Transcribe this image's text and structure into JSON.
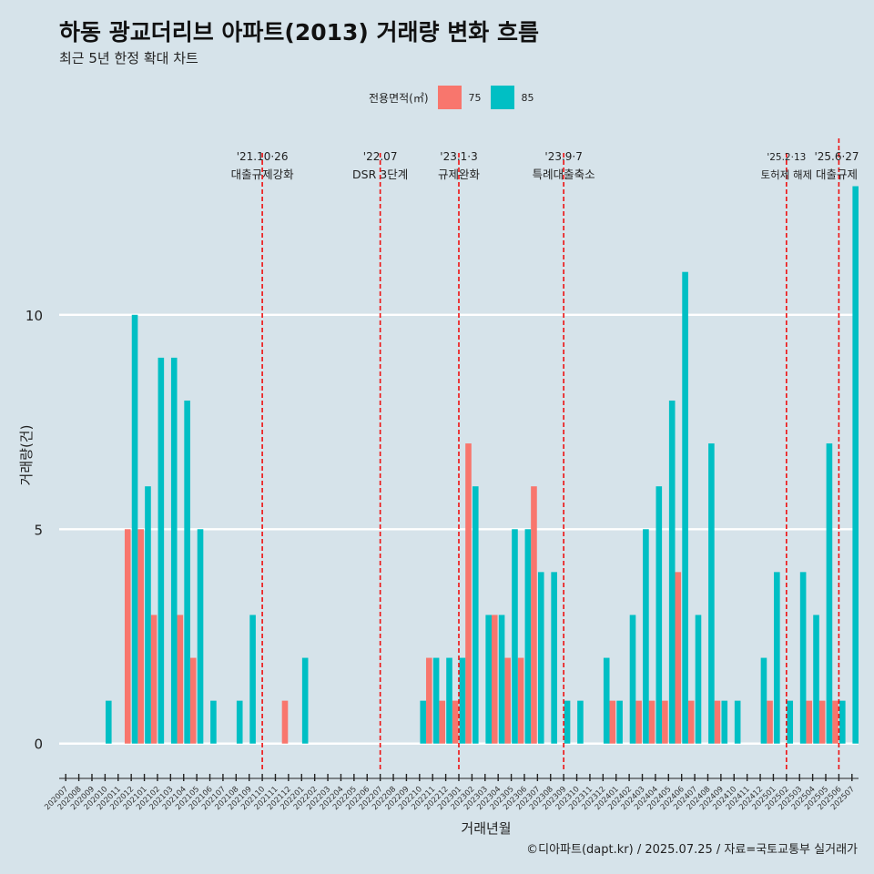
{
  "header": {
    "title": "하동 광교더리브 아파트(2013) 거래량 변화 흐름",
    "subtitle": "최근 5년 한정 확대 차트"
  },
  "legend": {
    "title": "전용면적(㎡)",
    "items": [
      {
        "label": "75",
        "color": "#f8766d"
      },
      {
        "label": "85",
        "color": "#00bfc4"
      }
    ]
  },
  "caption": "©디아파트(dapt.kr) / 2025.07.25 / 자료=국토교통부 실거래가",
  "chart_data": {
    "type": "bar",
    "xlabel": "거래년월",
    "ylabel": "거래량(건)",
    "ylim": [
      -0.6,
      14.2
    ],
    "yticks": [
      0,
      5,
      10
    ],
    "categories": [
      "202007",
      "202008",
      "202009",
      "202010",
      "202011",
      "202012",
      "202101",
      "202102",
      "202103",
      "202104",
      "202105",
      "202106",
      "202107",
      "202108",
      "202109",
      "202110",
      "202111",
      "202112",
      "202201",
      "202202",
      "202203",
      "202204",
      "202205",
      "202206",
      "202207",
      "202208",
      "202209",
      "202210",
      "202211",
      "202212",
      "202301",
      "202302",
      "202303",
      "202304",
      "202305",
      "202306",
      "202307",
      "202308",
      "202309",
      "202310",
      "202311",
      "202312",
      "202401",
      "202402",
      "202403",
      "202404",
      "202405",
      "202406",
      "202407",
      "202408",
      "202409",
      "202410",
      "202411",
      "202412",
      "202501",
      "202502",
      "202503",
      "202504",
      "202505",
      "202506",
      "202507"
    ],
    "series": [
      {
        "name": "75",
        "color": "#f8766d",
        "values": [
          0,
          0,
          0,
          0,
          0,
          5,
          5,
          3,
          0,
          3,
          2,
          0,
          0,
          0,
          0,
          0,
          0,
          1,
          0,
          0,
          0,
          0,
          0,
          0,
          0,
          0,
          0,
          0,
          2,
          1,
          1,
          7,
          0,
          3,
          2,
          2,
          6,
          0,
          0,
          0,
          0,
          0,
          1,
          0,
          1,
          1,
          1,
          4,
          1,
          0,
          1,
          0,
          0,
          0,
          1,
          0,
          0,
          1,
          1,
          1,
          0
        ]
      },
      {
        "name": "85",
        "color": "#00bfc4",
        "values": [
          0,
          0,
          0,
          1,
          0,
          10,
          6,
          9,
          9,
          8,
          5,
          1,
          0,
          1,
          3,
          0,
          0,
          0,
          2,
          0,
          0,
          0,
          0,
          0,
          0,
          0,
          0,
          1,
          2,
          2,
          2,
          6,
          3,
          3,
          5,
          5,
          4,
          4,
          1,
          1,
          0,
          2,
          1,
          3,
          5,
          6,
          8,
          11,
          3,
          7,
          1,
          1,
          0,
          2,
          4,
          1,
          4,
          3,
          7,
          1,
          13
        ]
      }
    ],
    "events": [
      {
        "date": "'21.10·26",
        "label": "대출규제강화",
        "month": "202110"
      },
      {
        "date": "'22.07",
        "label": "DSR 3단계",
        "month": "202207"
      },
      {
        "date": "'23.1·3",
        "label": "규제완화",
        "month": "202301"
      },
      {
        "date": "'23.9·7",
        "label": "특례대출축소",
        "month": "202309"
      },
      {
        "date": "'25.2·13",
        "label": "토허제 해제",
        "month": "202502"
      },
      {
        "date": "'25.6·27",
        "label": "대출규제",
        "month": "202506"
      }
    ]
  }
}
